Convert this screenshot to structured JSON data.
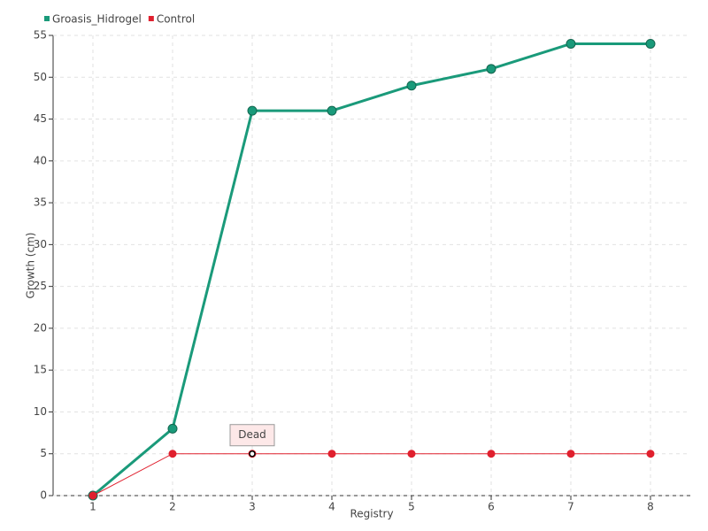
{
  "chart_data": {
    "type": "line",
    "x_label": "Registry",
    "y_label": "Growth (cm)",
    "categories": [
      "1",
      "2",
      "3",
      "4",
      "5",
      "6",
      "7",
      "8"
    ],
    "series": [
      {
        "name": "Groasis_Hidrogel",
        "color": "#1a9a7a",
        "values": [
          0,
          8,
          46,
          46,
          49,
          51,
          54,
          54
        ]
      },
      {
        "name": "Control",
        "color": "#e0202e",
        "values": [
          0,
          5,
          5,
          5,
          5,
          5,
          5,
          5
        ]
      }
    ],
    "annotations": [
      {
        "text": "Dead",
        "x": "3",
        "y": 5
      }
    ],
    "ylim": [
      0,
      55
    ],
    "yticks": [
      0,
      5,
      10,
      15,
      20,
      25,
      30,
      35,
      40,
      45,
      50,
      55
    ],
    "grid": true,
    "legend": "top-left"
  }
}
